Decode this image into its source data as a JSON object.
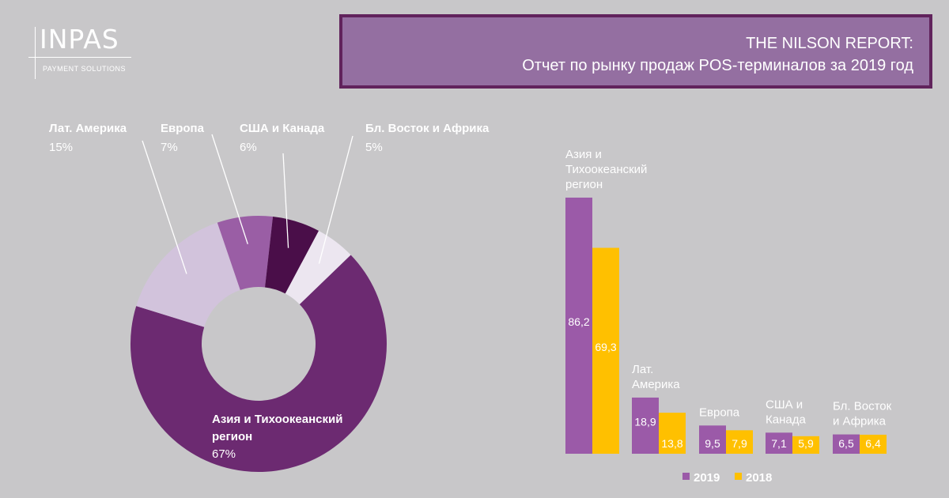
{
  "logo": {
    "name": "INPAS",
    "subtitle": "PAYMENT SOLUTIONS"
  },
  "header": {
    "line1": "THE NILSON REPORT:",
    "line2": "Отчет по рынку продаж POS-терминалов за 2019 год"
  },
  "chart_data": [
    {
      "type": "pie",
      "donut": true,
      "slices": [
        {
          "label": "Азия и Тихоокеанский регион",
          "value": 67,
          "value_label": "67%",
          "color": "#6c2a71"
        },
        {
          "label": "Лат. Америка",
          "value": 15,
          "value_label": "15%",
          "color": "#d2c3dc"
        },
        {
          "label": "Европа",
          "value": 7,
          "value_label": "7%",
          "color": "#9a5ea5"
        },
        {
          "label": "США и Канада",
          "value": 6,
          "value_label": "6%",
          "color": "#4a0e49"
        },
        {
          "label": "Бл. Восток и Африка",
          "value": 5,
          "value_label": "5%",
          "color": "#ece6f0"
        }
      ]
    },
    {
      "type": "bar",
      "categories": [
        "Азия и Тихоокеанский регион",
        "Лат. Америка",
        "Европа",
        "США и Канада",
        "Бл. Восток и Африка"
      ],
      "category_lines": [
        [
          "Азия и",
          "Тихоокеанский",
          "регион"
        ],
        [
          "Лат.",
          "Америка"
        ],
        [
          "Европа"
        ],
        [
          "США и",
          "Канада"
        ],
        [
          "Бл. Восток",
          "и Африка"
        ]
      ],
      "series": [
        {
          "name": "2019",
          "values": [
            86.2,
            18.9,
            9.5,
            7.1,
            6.5
          ],
          "value_labels": [
            "86,2",
            "18,9",
            "9,5",
            "7,1",
            "6,5"
          ],
          "color": "#9b5aa8"
        },
        {
          "name": "2018",
          "values": [
            69.3,
            13.8,
            7.9,
            5.9,
            6.4
          ],
          "value_labels": [
            "69,3",
            "13,8",
            "7,9",
            "5,9",
            "6,4"
          ],
          "color": "#ffc000"
        }
      ],
      "legend": "bottom",
      "ylim": [
        0,
        86.2
      ]
    }
  ]
}
